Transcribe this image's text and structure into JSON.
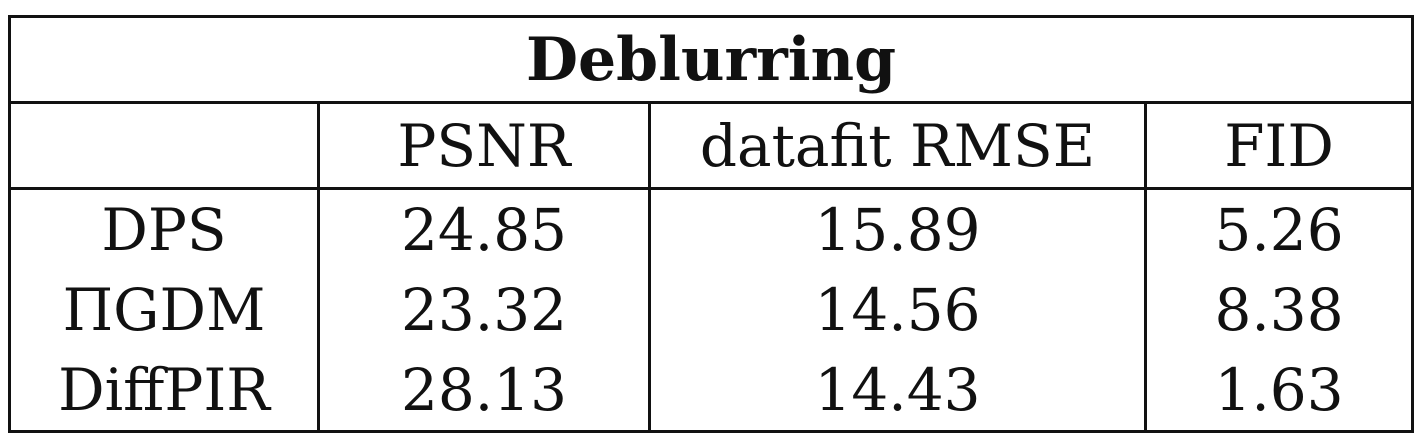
{
  "table": {
    "title": "Deblurring",
    "headers": [
      "",
      "PSNR",
      "datafit RMSE",
      "FID"
    ],
    "rows": [
      {
        "method": "DPS",
        "psnr": "24.85",
        "datafit_rmse": "15.89",
        "fid": "5.26"
      },
      {
        "method": "ΠGDM",
        "psnr": "23.32",
        "datafit_rmse": "14.56",
        "fid": "8.38"
      },
      {
        "method": "DiffPIR",
        "psnr": "28.13",
        "datafit_rmse": "14.43",
        "fid": "1.63"
      }
    ]
  }
}
